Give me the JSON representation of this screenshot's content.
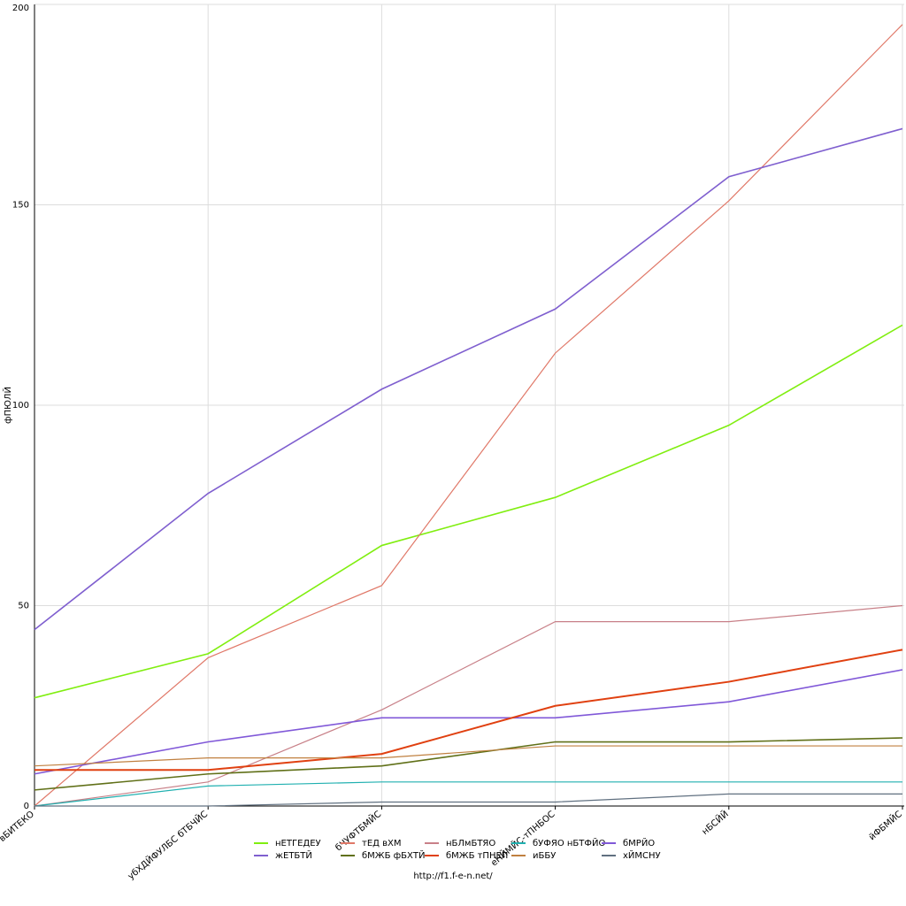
{
  "chart_data": {
    "type": "line",
    "y_label": "фПЮЛЙ",
    "footer": "http://f1.f-e-n.net/",
    "categories": [
      "вБИТЕКО",
      "убХДЙФУЛБС бТБЧЙС",
      "бЧУФТБМЙС",
      "еНЙМЙС-тПНБОС",
      "нБСЙЙ",
      "йФБМЙС"
    ],
    "ylim": [
      0,
      200
    ],
    "yticks": [
      0,
      50,
      100,
      150,
      200
    ],
    "grid": true,
    "series": [
      {
        "name": "нЕТГЕДЕУ",
        "color": "#80ee10",
        "values": [
          27,
          38,
          65,
          77,
          95,
          120
        ]
      },
      {
        "name": "тЕД вХМ",
        "color": "#e07868",
        "values": [
          0,
          37,
          55,
          113,
          151,
          195
        ]
      },
      {
        "name": "нБЛмБТЯО",
        "color": "#c88088",
        "values": [
          0,
          6,
          24,
          46,
          46,
          50
        ]
      },
      {
        "name": "бУФЯО нБТФЙО",
        "color": "#20b0b0",
        "values": [
          0,
          5,
          6,
          6,
          6,
          6
        ]
      },
      {
        "name": "бМРЙО",
        "color": "#8058d8",
        "values": [
          8,
          16,
          22,
          22,
          26,
          34
        ]
      },
      {
        "name": "жЕТБТЙ",
        "color": "#7f5fcf",
        "values": [
          44,
          78,
          104,
          124,
          157,
          169
        ]
      },
      {
        "name": "бМЖБ фБХТЙ",
        "color": "#607018",
        "values": [
          4,
          8,
          10,
          16,
          16,
          17
        ]
      },
      {
        "name": "бМЖБ тПНЕП",
        "color": "#e04010",
        "values": [
          9,
          9,
          13,
          25,
          31,
          39
        ]
      },
      {
        "name": "иББУ",
        "color": "#c08040",
        "values": [
          10,
          12,
          12,
          15,
          15,
          15
        ]
      },
      {
        "name": "хЙМСНУ",
        "color": "#607080",
        "values": [
          0,
          0,
          1,
          1,
          3,
          3
        ]
      }
    ]
  }
}
